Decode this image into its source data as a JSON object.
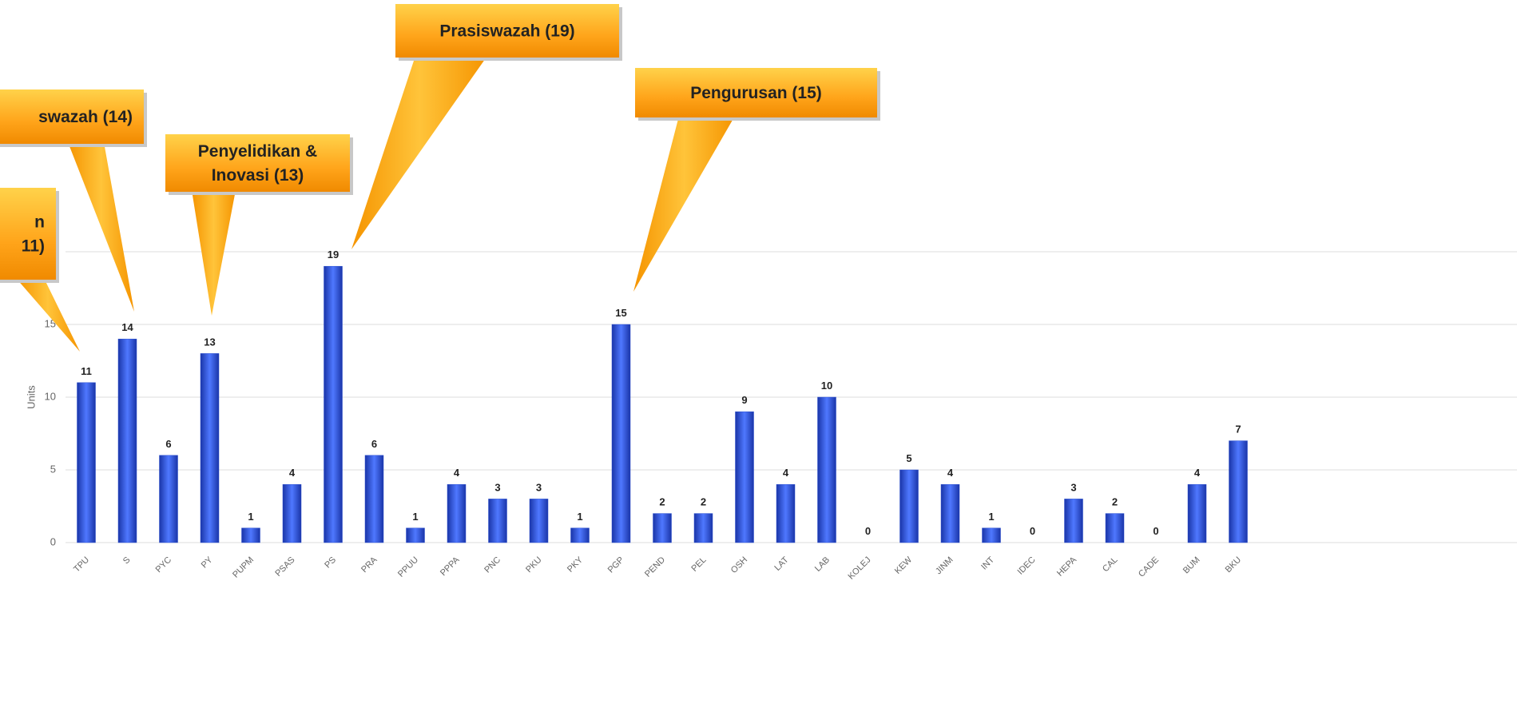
{
  "chart_data": {
    "type": "bar",
    "y_label": "Units",
    "categories": [
      "TPU",
      "S",
      "PYC",
      "PY",
      "PUPM",
      "PSAS",
      "PS",
      "PRA",
      "PPUU",
      "PPPA",
      "PNC",
      "PKU",
      "PKY",
      "PGP",
      "PEND",
      "PEL",
      "OSH",
      "LAT",
      "LAB",
      "KOLEJ",
      "KEW",
      "JINM",
      "INT",
      "IDEC",
      "HEPA",
      "CAL",
      "CADE",
      "BUM",
      "BKU"
    ],
    "values": [
      11,
      14,
      6,
      13,
      1,
      4,
      19,
      6,
      1,
      4,
      3,
      3,
      1,
      15,
      2,
      2,
      9,
      4,
      10,
      0,
      5,
      4,
      1,
      0,
      3,
      2,
      0,
      4,
      7
    ],
    "color": "#2a4fd0",
    "ylim": [
      0,
      20
    ],
    "yticks": [
      0,
      5,
      10,
      15,
      20
    ],
    "grid": true,
    "annotations": [
      {
        "lines": [
          "n",
          "11)"
        ]
      },
      {
        "lines": [
          "swazah (14)"
        ]
      },
      {
        "lines": [
          "Penyelidikan &",
          "Inovasi (13)"
        ]
      },
      {
        "lines": [
          "Prasiswazah (19)"
        ]
      },
      {
        "lines": [
          "Pengurusan (15)"
        ]
      }
    ]
  }
}
